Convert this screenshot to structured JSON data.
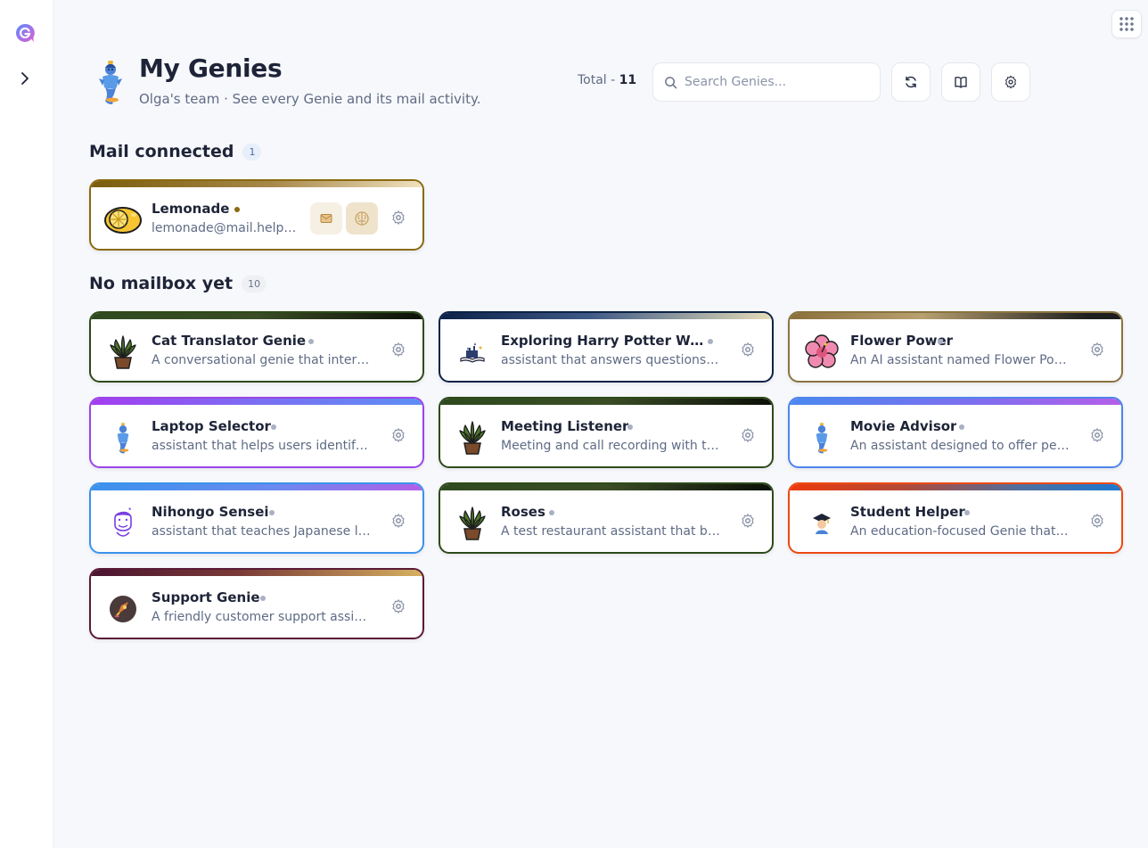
{
  "header": {
    "title": "My Genies",
    "subtitle": "Olga's team · See every Genie and its mail activity.",
    "total_label": "Total - ",
    "total_value": "11"
  },
  "search": {
    "placeholder": "Search Genies...",
    "value": ""
  },
  "sections": {
    "connected": {
      "title": "Mail connected",
      "count": "1"
    },
    "no_mailbox": {
      "title": "No mailbox yet",
      "count": "10"
    }
  },
  "connected_cards": [
    {
      "name": "Lemonade",
      "desc": "lemonade@mail.helpmate.ai",
      "avatar": "lemon-icon",
      "dot_color": "#8a6a10"
    }
  ],
  "cards": [
    {
      "name": "Cat Translator Genie",
      "desc": "A conversational genie that interprets cat sounds",
      "avatar": "plant-icon"
    },
    {
      "name": "Exploring Harry Potter World",
      "desc": "assistant that answers questions about Harry Potter",
      "avatar": "castle-book-icon"
    },
    {
      "name": "Flower Power",
      "desc": "An AI assistant named Flower Power helps with flowers",
      "avatar": "hibiscus-icon"
    },
    {
      "name": "Laptop Selector",
      "desc": "assistant that helps users identify laptops",
      "avatar": "genie-icon"
    },
    {
      "name": "Meeting Listener",
      "desc": "Meeting and call recording with transcripts",
      "avatar": "plant-icon"
    },
    {
      "name": "Movie Advisor",
      "desc": "An assistant designed to offer personal movie picks",
      "avatar": "genie-icon"
    },
    {
      "name": "Nihongo Sensei",
      "desc": "assistant that teaches Japanese language",
      "avatar": "sensei-icon"
    },
    {
      "name": "Roses",
      "desc": "A test restaurant assistant that books tables",
      "avatar": "plant-icon"
    },
    {
      "name": "Student Helper",
      "desc": "An education-focused Genie that helps students",
      "avatar": "graduate-icon"
    },
    {
      "name": "Support Genie",
      "desc": "A friendly customer support assistant",
      "avatar": "rocket-icon"
    }
  ],
  "colors": {
    "accent": "#1e2438",
    "muted_text": "#5f6b85",
    "status_dot": "#a8b0c2",
    "connected_dot": "#8a6a10"
  }
}
